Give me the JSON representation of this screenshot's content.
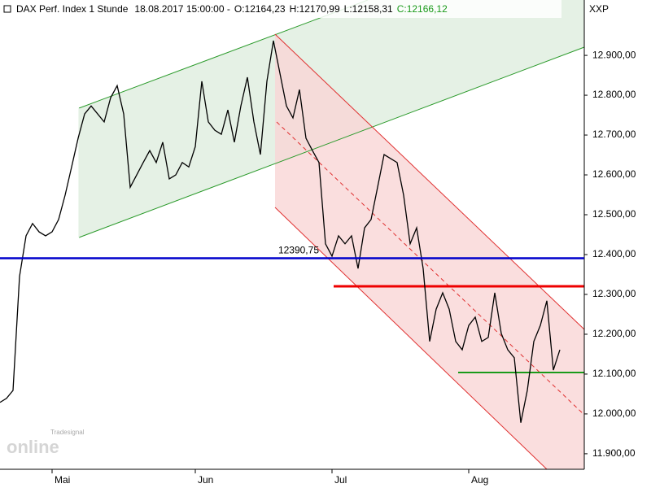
{
  "chart_data": {
    "type": "line",
    "title": "DAX Perf. Index 1 Stunde",
    "datetime": "18.08.2017 15:00:00 -",
    "ohlc": [
      "O:12164,23",
      "H:12170,99",
      "L:12158,31"
    ],
    "close": "C:12166,12",
    "symbol": "XXP",
    "watermark": [
      "Tradesignal",
      "online"
    ],
    "level": {
      "value": 12390.75,
      "label": "12390,75",
      "color": "#0000cc"
    },
    "categories": [
      null,
      null,
      null,
      null,
      null,
      null,
      null,
      null,
      "Mai",
      null,
      null,
      null,
      null,
      null,
      null,
      null,
      null,
      null,
      null,
      null,
      null,
      null,
      null,
      null,
      null,
      null,
      null,
      null,
      null,
      null,
      "Jun",
      null,
      null,
      null,
      null,
      null,
      null,
      null,
      null,
      null,
      null,
      null,
      null,
      null,
      null,
      null,
      null,
      null,
      null,
      null,
      null,
      "Jul",
      null,
      null,
      null,
      null,
      null,
      null,
      null,
      null,
      null,
      null,
      null,
      null,
      null,
      null,
      null,
      null,
      null,
      null,
      null,
      null,
      "Aug",
      null,
      null,
      null,
      null,
      null,
      null,
      null,
      null,
      null,
      null,
      null,
      null,
      null,
      null
    ],
    "series": [
      {
        "color": "#000000",
        "values": [
          12029,
          12039,
          12059,
          12345,
          12447,
          12478,
          12457,
          12447,
          12457,
          12488,
          12549,
          12620,
          12692,
          12753,
          12773,
          12753,
          12733,
          12794,
          12824,
          12753,
          12569,
          12600,
          12631,
          12661,
          12631,
          12682,
          12590,
          12600,
          12631,
          12620,
          12671,
          12835,
          12733,
          12712,
          12702,
          12763,
          12682,
          12773,
          12845,
          12733,
          12651,
          12835,
          12937,
          12855,
          12773,
          12743,
          12814,
          12692,
          12661,
          12631,
          12427,
          12396,
          12447,
          12427,
          12447,
          12365,
          12467,
          12488,
          12569,
          12651,
          12641,
          12631,
          12549,
          12427,
          12467,
          12365,
          12182,
          12263,
          12304,
          12263,
          12182,
          12161,
          12222,
          12243,
          12182,
          12192,
          12304,
          12202,
          12161,
          12141,
          11978,
          12059,
          12182,
          12222,
          12284,
          12110,
          12161
        ]
      }
    ],
    "ylim": [
      11861,
      13039
    ],
    "yticks": [
      {
        "value": 11900,
        "label": "11.900,00"
      },
      {
        "value": 12000,
        "label": "12.000,00"
      },
      {
        "value": 12100,
        "label": "12.100,00"
      },
      {
        "value": 12200,
        "label": "12.200,00"
      },
      {
        "value": 12300,
        "label": "12.300,00"
      },
      {
        "value": 12400,
        "label": "12.400,00"
      },
      {
        "value": 12500,
        "label": "12.500,00"
      },
      {
        "value": 12600,
        "label": "12.600,00"
      },
      {
        "value": 12700,
        "label": "12.700,00"
      },
      {
        "value": 12800,
        "label": "12.800,00"
      },
      {
        "value": 12900,
        "label": "12.900,00"
      }
    ]
  }
}
